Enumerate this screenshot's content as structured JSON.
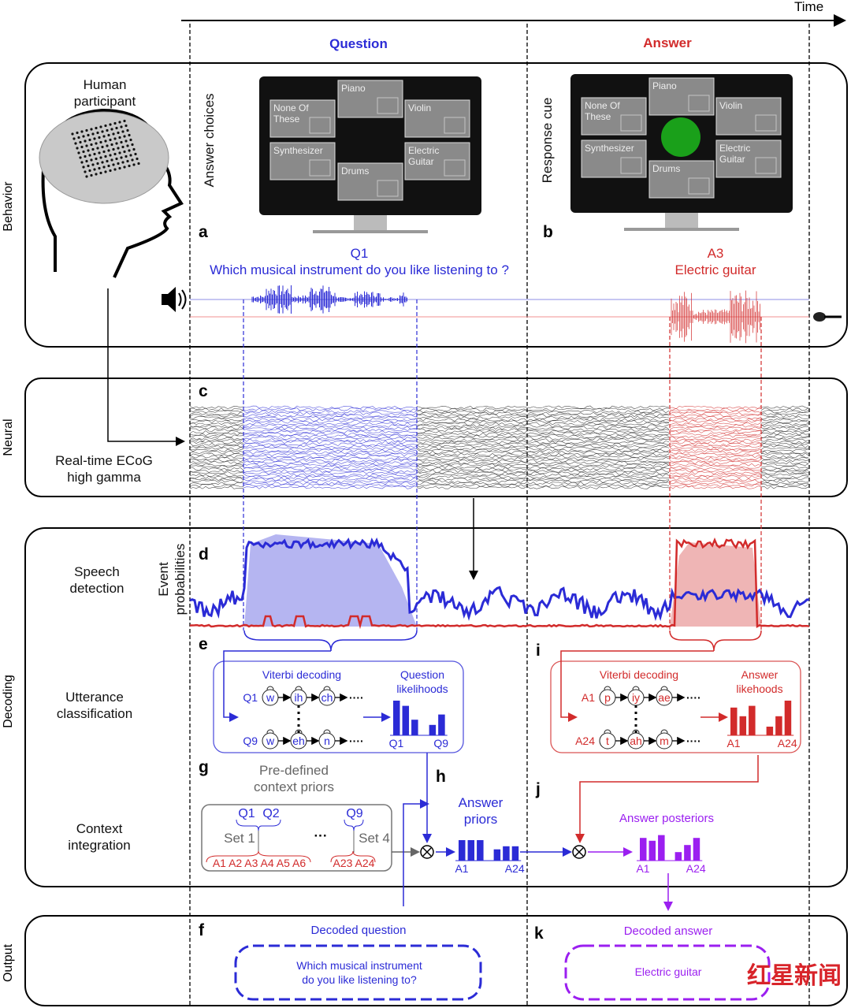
{
  "time_label": "Time",
  "columns": {
    "question": "Question",
    "answer": "Answer"
  },
  "colors": {
    "question": "#2b2bd6",
    "answer": "#d22b2b",
    "posterior": "#9b1ff0",
    "cue": "#1aa01a"
  },
  "rows": {
    "behavior": "Behavior",
    "neural": "Neural",
    "decoding": "Decoding",
    "output": "Output"
  },
  "behavior": {
    "participant": [
      "Human",
      "participant"
    ],
    "answer_choices": "Answer choices",
    "response_cue": "Response cue",
    "tiles": [
      "Piano",
      "None Of",
      "These",
      "Violin",
      "Synthesizer",
      "Electric",
      "Guitar",
      "Drums"
    ],
    "panel_a": "a",
    "panel_b": "b",
    "q_id": "Q1",
    "q_text": "Which musical instrument do you like listening to ?",
    "a_id": "A3",
    "a_text": "Electric guitar",
    "icons": [
      "speaker-icon",
      "microphone-icon",
      "brain-electrode-icon"
    ]
  },
  "neural": {
    "panel": "c",
    "label": [
      "Real-time ECoG",
      "high gamma"
    ]
  },
  "decoding": {
    "panel_d": "d",
    "speech_detection": [
      "Speech",
      "detection"
    ],
    "event_prob": [
      "Event",
      "probabilities"
    ],
    "panel_e": "e",
    "panel_i": "i",
    "panel_g": "g",
    "panel_h": "h",
    "panel_j": "j",
    "utterance": [
      "Utterance",
      "classification"
    ],
    "context": [
      "Context",
      "integration"
    ],
    "viterbi": "Viterbi decoding",
    "q_like": [
      "Question",
      "likelihoods"
    ],
    "a_like": [
      "Answer",
      "likehoods"
    ],
    "q_rows": [
      {
        "id": "Q1",
        "states": [
          "w",
          "ih",
          "ch"
        ]
      },
      {
        "id": "Q9",
        "states": [
          "w",
          "eh",
          "n"
        ]
      }
    ],
    "a_rows": [
      {
        "id": "A1",
        "states": [
          "p",
          "iy",
          "ae"
        ]
      },
      {
        "id": "A24",
        "states": [
          "t",
          "ah",
          "m"
        ]
      }
    ],
    "q_axis": [
      "Q1",
      "Q9"
    ],
    "a_axis": [
      "A1",
      "A24"
    ],
    "priors_title": [
      "Pre-defined",
      "context priors"
    ],
    "prior_q": [
      "Q1",
      "Q2",
      "Q9"
    ],
    "prior_sets": [
      "Set 1",
      "Set 4"
    ],
    "ellipsis": "···",
    "prior_a_left": "A1 A2 A3 A4 A5 A6",
    "prior_a_right": "A23 A24",
    "answer_priors": [
      "Answer",
      "priors"
    ],
    "answer_posteriors": "Answer posteriors",
    "bars": {
      "q_likelihood": [
        1.0,
        0.85,
        0.45,
        0.3,
        0.6
      ],
      "a_likelihood": [
        0.8,
        0.55,
        0.85,
        0.25,
        0.55,
        1.0
      ],
      "a_priors": [
        1,
        1,
        1,
        0.55,
        0.7,
        0.7
      ],
      "a_posteriors": [
        0.8,
        0.7,
        0.9,
        0.3,
        0.55,
        0.8
      ]
    }
  },
  "output": {
    "panel_f": "f",
    "panel_k": "k",
    "decoded_question": "Decoded question",
    "question_text": [
      "Which musical instrument",
      "do you like listening to?"
    ],
    "decoded_answer": "Decoded answer",
    "answer_text": "Electric guitar",
    "watermark": "红星新闻"
  }
}
